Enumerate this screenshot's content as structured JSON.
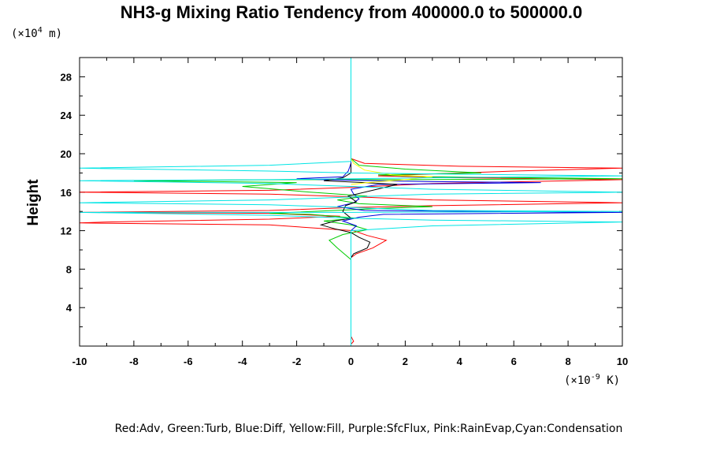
{
  "chart_data": {
    "type": "line",
    "title": "NH3-g Mixing Ratio Tendency from 400000.0 to 500000.0",
    "ylabel": "Height",
    "y_unit_prefix": "(×10",
    "y_unit_exp": "4",
    "y_unit_suffix": " m)",
    "x_unit_prefix": "(×10",
    "x_unit_exp": "-9",
    "x_unit_suffix": " K)",
    "xlim": [
      -10,
      10
    ],
    "ylim": [
      0,
      30
    ],
    "x_ticks": [
      -10,
      -8,
      -6,
      -4,
      -2,
      0,
      2,
      4,
      6,
      8,
      10
    ],
    "y_ticks": [
      4,
      8,
      12,
      16,
      20,
      24,
      28
    ],
    "legend_text": "Red:Adv, Green:Turb, Blue:Diff, Yellow:Fill, Purple:SfcFlux, Pink:RainEvap,Cyan:Condensation",
    "series": [
      {
        "color": "#ff0000",
        "points": [
          [
            0,
            0
          ],
          [
            0,
            0.2
          ],
          [
            0.1,
            0.5
          ],
          [
            0,
            1
          ],
          [
            0,
            8
          ],
          [
            0,
            9.2
          ],
          [
            0.2,
            9.6
          ],
          [
            0.8,
            10.2
          ],
          [
            1.3,
            11
          ],
          [
            0.6,
            11.5
          ],
          [
            0.1,
            12
          ],
          [
            -3,
            12.6
          ],
          [
            -10,
            12.8
          ],
          [
            -9,
            12.9
          ],
          [
            -3,
            13.2
          ],
          [
            -0.4,
            13.5
          ],
          [
            -3,
            13.8
          ],
          [
            -10,
            13.9
          ],
          [
            -3,
            14.1
          ],
          [
            0,
            14.4
          ],
          [
            3,
            14.6
          ],
          [
            10,
            14.9
          ],
          [
            3,
            15.2
          ],
          [
            0.3,
            15.5
          ],
          [
            -3,
            15.8
          ],
          [
            -10,
            16.0
          ],
          [
            -3,
            16.2
          ],
          [
            0,
            16.5
          ],
          [
            3,
            16.9
          ],
          [
            10,
            17.3
          ],
          [
            4,
            17.5
          ],
          [
            1,
            17.7
          ],
          [
            3,
            17.9
          ],
          [
            6,
            18.2
          ],
          [
            10,
            18.5
          ],
          [
            4,
            18.7
          ],
          [
            0.5,
            19
          ],
          [
            0,
            19.5
          ],
          [
            0,
            30
          ]
        ]
      },
      {
        "color": "#00cc00",
        "points": [
          [
            0,
            0
          ],
          [
            0,
            9
          ],
          [
            -0.5,
            10.2
          ],
          [
            -0.8,
            11
          ],
          [
            -0.3,
            11.6
          ],
          [
            0.6,
            12.1
          ],
          [
            0,
            12.6
          ],
          [
            -1,
            13.0
          ],
          [
            0.2,
            13.3
          ],
          [
            -1.5,
            13.7
          ],
          [
            -3,
            13.8
          ],
          [
            -0.6,
            14.1
          ],
          [
            1,
            14.3
          ],
          [
            3,
            14.5
          ],
          [
            0.3,
            14.8
          ],
          [
            -0.5,
            15.2
          ],
          [
            0.6,
            15.6
          ],
          [
            -1.5,
            16.0
          ],
          [
            -4,
            16.6
          ],
          [
            -2,
            17
          ],
          [
            -8,
            17.2
          ],
          [
            -2,
            17.3
          ],
          [
            2,
            17.3
          ],
          [
            10,
            17.4
          ],
          [
            3,
            17.6
          ],
          [
            1,
            17.8
          ],
          [
            4.8,
            18.0
          ],
          [
            2,
            18.4
          ],
          [
            0.3,
            18.8
          ],
          [
            0,
            19.5
          ],
          [
            0,
            30
          ]
        ]
      },
      {
        "color": "#0000dd",
        "points": [
          [
            0,
            0
          ],
          [
            0,
            9
          ],
          [
            0,
            12
          ],
          [
            0.2,
            12.5
          ],
          [
            -0.3,
            13.0
          ],
          [
            0.3,
            13.4
          ],
          [
            1.2,
            13.7
          ],
          [
            10,
            13.9
          ],
          [
            5,
            14.0
          ],
          [
            0.5,
            14.1
          ],
          [
            -0.5,
            14.5
          ],
          [
            0.1,
            14.9
          ],
          [
            0.3,
            15.3
          ],
          [
            0.1,
            15.8
          ],
          [
            0,
            16.3
          ],
          [
            1,
            16.8
          ],
          [
            7,
            17.0
          ],
          [
            3,
            17.1
          ],
          [
            1,
            17.2
          ],
          [
            -1,
            17.3
          ],
          [
            -2,
            17.4
          ],
          [
            -0.3,
            17.6
          ],
          [
            -0.1,
            18.2
          ],
          [
            0,
            19
          ],
          [
            0,
            30
          ]
        ]
      },
      {
        "color": "#000000",
        "points": [
          [
            0,
            8
          ],
          [
            0,
            9.2
          ],
          [
            0.1,
            9.6
          ],
          [
            0.6,
            10.2
          ],
          [
            0.7,
            10.8
          ],
          [
            0.3,
            11.3
          ],
          [
            0,
            11.8
          ],
          [
            -0.6,
            12.2
          ],
          [
            -1.1,
            12.6
          ],
          [
            -0.6,
            13.0
          ],
          [
            0,
            13.3
          ],
          [
            -0.3,
            14.0
          ],
          [
            -0.2,
            14.6
          ],
          [
            0.2,
            15.0
          ],
          [
            -0.1,
            15.6
          ],
          [
            0.8,
            16.2
          ],
          [
            1.7,
            16.8
          ],
          [
            0.5,
            17.0
          ],
          [
            -1,
            17.2
          ],
          [
            -0.3,
            17.5
          ],
          [
            0,
            18
          ],
          [
            0,
            19
          ]
        ]
      },
      {
        "color": "#ffff00",
        "points": [
          [
            0,
            16.8
          ],
          [
            0.6,
            17.0
          ],
          [
            2,
            17.3
          ],
          [
            3,
            17.6
          ],
          [
            1.5,
            17.8
          ],
          [
            0.5,
            18.3
          ],
          [
            0.1,
            19
          ],
          [
            0,
            19.5
          ]
        ]
      },
      {
        "color": "#00e5e5",
        "points": [
          [
            0,
            0
          ],
          [
            0,
            12
          ],
          [
            3,
            12.5
          ],
          [
            10,
            12.9
          ],
          [
            3,
            13.1
          ],
          [
            0,
            13.3
          ],
          [
            -3,
            13.6
          ],
          [
            -10,
            13.9
          ],
          [
            0,
            13.9
          ],
          [
            10,
            14.0
          ],
          [
            3,
            14.1
          ],
          [
            0,
            14.4
          ],
          [
            -3,
            14.7
          ],
          [
            -10,
            14.9
          ],
          [
            -3,
            15.2
          ],
          [
            0,
            15.5
          ],
          [
            3,
            15.8
          ],
          [
            10,
            16.0
          ],
          [
            3,
            16.3
          ],
          [
            0,
            16.6
          ],
          [
            -3,
            16.9
          ],
          [
            -10,
            17.2
          ],
          [
            -3,
            17.3
          ],
          [
            0,
            17.4
          ],
          [
            3,
            17.5
          ],
          [
            10,
            17.7
          ],
          [
            3,
            17.9
          ],
          [
            0,
            18.0
          ],
          [
            -3,
            18.2
          ],
          [
            -10,
            18.5
          ],
          [
            -3,
            18.8
          ],
          [
            0,
            19.2
          ],
          [
            0,
            19.6
          ],
          [
            0,
            30
          ]
        ]
      }
    ]
  }
}
